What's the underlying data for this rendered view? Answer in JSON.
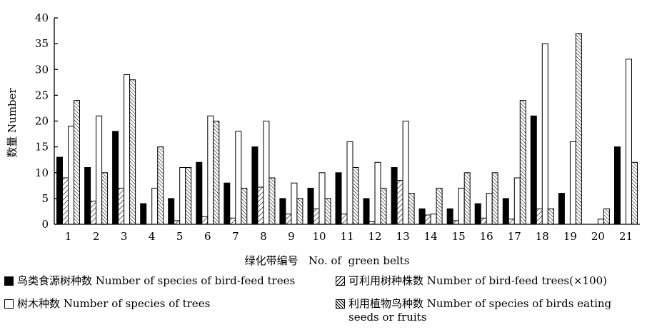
{
  "chart_data": {
    "type": "bar",
    "categories": [
      "1",
      "2",
      "3",
      "4",
      "5",
      "6",
      "7",
      "8",
      "9",
      "10",
      "11",
      "12",
      "13",
      "14",
      "15",
      "16",
      "17",
      "18",
      "19",
      "20",
      "21"
    ],
    "xlabel": "绿化带编号   No. of  green belts",
    "ylabel": "数量  Number",
    "ylim": [
      0,
      40
    ],
    "yticks": [
      0,
      5,
      10,
      15,
      20,
      25,
      30,
      35,
      40
    ],
    "grid": false,
    "legend_position": "bottom",
    "series": [
      {
        "name": "鸟类食源树种数 Number of species of bird-feed trees",
        "fill": "solid",
        "color": "#000000",
        "values": [
          13,
          11,
          18,
          4,
          5,
          12,
          8,
          15,
          5,
          7,
          10,
          5,
          11,
          3,
          3,
          4,
          5,
          21,
          6,
          0,
          15
        ]
      },
      {
        "name": "可利用树种株数 Number of bird-feed trees(×100)",
        "fill": "hatch",
        "color": "#000000",
        "values": [
          9,
          4.5,
          7,
          0,
          0.7,
          1.5,
          1.2,
          7.2,
          2,
          3,
          2,
          0.5,
          8.5,
          1.8,
          0.7,
          1.2,
          1,
          3,
          0,
          0,
          0
        ]
      },
      {
        "name": "树木种数 Number of species of trees",
        "fill": "open",
        "color": "#ffffff",
        "values": [
          19,
          21,
          29,
          7,
          11,
          21,
          18,
          20,
          8,
          10,
          16,
          12,
          20,
          2,
          7,
          6,
          9,
          35,
          16,
          1,
          32
        ]
      },
      {
        "name": "利用植物鸟种数 Number of species of birds eating seeds or fruits",
        "fill": "hatch-dense",
        "color": "#000000",
        "values": [
          24,
          10,
          28,
          15,
          11,
          20,
          7,
          9,
          5,
          5,
          11,
          7,
          6,
          7,
          10,
          10,
          24,
          3,
          37,
          3,
          12
        ]
      }
    ]
  },
  "legend": {
    "items": [
      {
        "label": "鸟类食源树种数 Number of species of bird-feed trees",
        "swatch": "solid"
      },
      {
        "label": "可利用树种株数 Number of bird-feed trees(×100)",
        "swatch": "hatch"
      },
      {
        "label": "树木种数  Number of species of trees",
        "swatch": "open"
      },
      {
        "label": "利用植物鸟种数 Number of species of birds eating seeds or fruits",
        "swatch": "hatch-dense"
      }
    ]
  }
}
